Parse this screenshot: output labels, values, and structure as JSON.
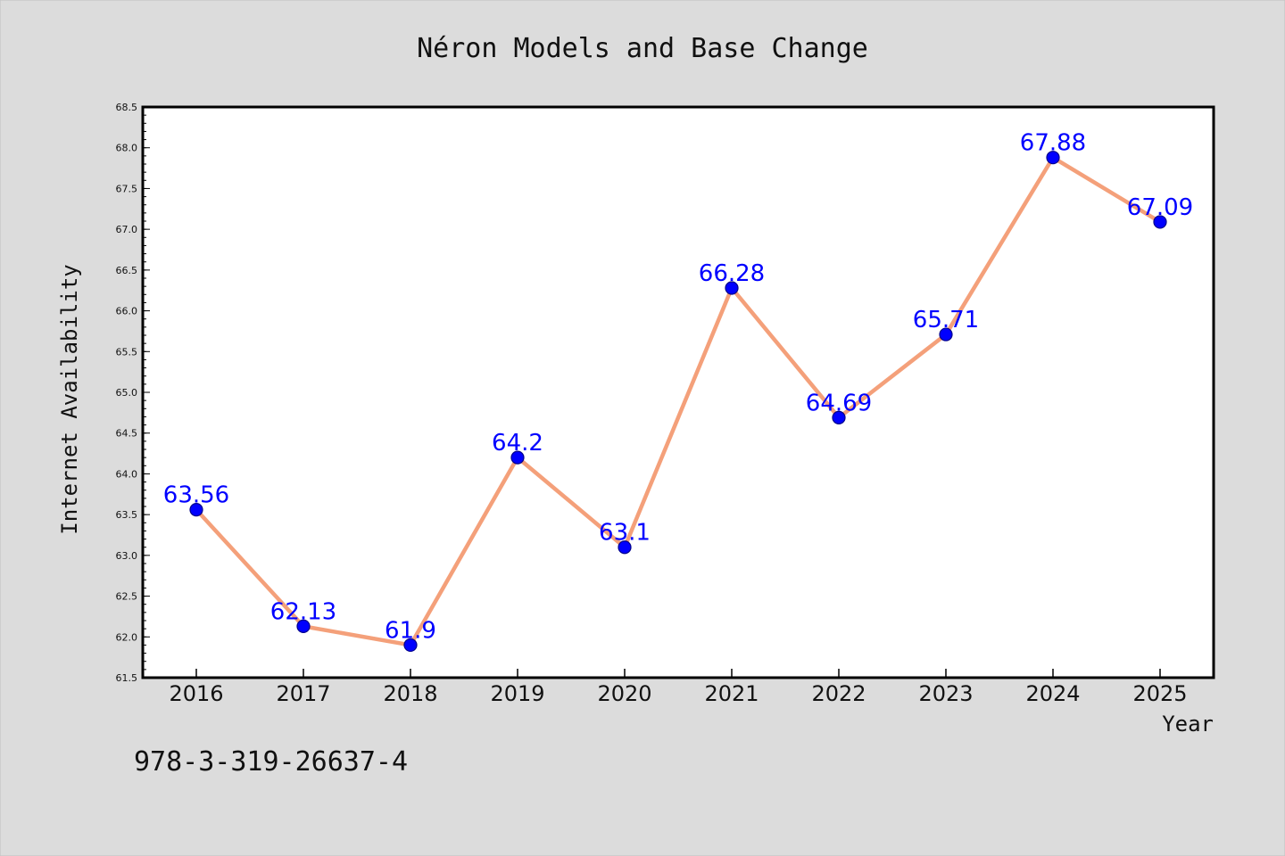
{
  "chart_data": {
    "type": "line",
    "title": "Néron Models and Base Change",
    "xlabel": "Year",
    "ylabel": "Internet Availability",
    "categories": [
      "2016",
      "2017",
      "2018",
      "2019",
      "2020",
      "2021",
      "2022",
      "2023",
      "2024",
      "2025"
    ],
    "series": [
      {
        "values": [
          63.56,
          62.13,
          61.9,
          64.2,
          63.1,
          66.28,
          64.69,
          65.71,
          67.88,
          67.09
        ],
        "data_labels": [
          "63.56",
          "62.13",
          "61.9",
          "64.2",
          "63.1",
          "66.28",
          "64.69",
          "65.71",
          "67.88",
          "67.09"
        ]
      }
    ],
    "yticks": [
      "61.5",
      "62.0",
      "62.5",
      "63.0",
      "63.5",
      "64.0",
      "64.5",
      "65.0",
      "65.5",
      "66.0",
      "66.5",
      "67.0",
      "67.5",
      "68.0",
      "68.5"
    ],
    "ylim": [
      61.5,
      68.5
    ],
    "grid": false,
    "legend": "none",
    "colors": {
      "background": "#dcdcdc",
      "plot_background": "#ffffff",
      "line": "#f4a07a",
      "marker": "#0000ff",
      "data_label": "#0000ff",
      "axis": "#000000"
    }
  },
  "footer": {
    "text": "978-3-319-26637-4"
  }
}
